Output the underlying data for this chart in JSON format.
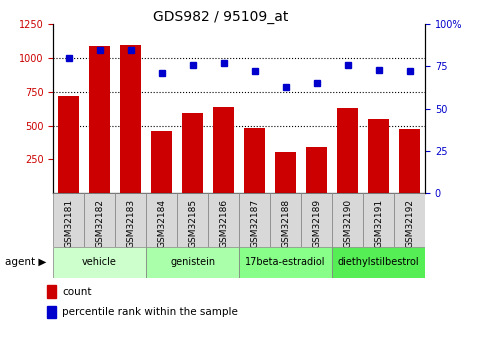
{
  "title": "GDS982 / 95109_at",
  "samples": [
    "GSM32181",
    "GSM32182",
    "GSM32183",
    "GSM32184",
    "GSM32185",
    "GSM32186",
    "GSM32187",
    "GSM32188",
    "GSM32189",
    "GSM32190",
    "GSM32191",
    "GSM32192"
  ],
  "count_values": [
    720,
    1090,
    1095,
    460,
    590,
    640,
    480,
    305,
    345,
    630,
    545,
    475
  ],
  "percentile_values": [
    80,
    85,
    85,
    71,
    76,
    77,
    72,
    63,
    65,
    76,
    73,
    72
  ],
  "ylim_left": [
    0,
    1250
  ],
  "ylim_right": [
    0,
    100
  ],
  "yticks_left": [
    250,
    500,
    750,
    1000,
    1250
  ],
  "yticks_right": [
    0,
    25,
    50,
    75,
    100
  ],
  "bar_color": "#cc0000",
  "scatter_color": "#0000cc",
  "agent_groups": [
    {
      "label": "vehicle",
      "start": 0,
      "end": 3,
      "color": "#ccffcc"
    },
    {
      "label": "genistein",
      "start": 3,
      "end": 6,
      "color": "#aaffaa"
    },
    {
      "label": "17beta-estradiol",
      "start": 6,
      "end": 9,
      "color": "#88ff88"
    },
    {
      "label": "diethylstilbestrol",
      "start": 9,
      "end": 12,
      "color": "#55ee55"
    }
  ],
  "agent_label": "agent",
  "legend_count_label": "count",
  "legend_pct_label": "percentile rank within the sample",
  "title_fontsize": 10,
  "tick_fontsize": 7,
  "sample_label_fontsize": 6.5
}
